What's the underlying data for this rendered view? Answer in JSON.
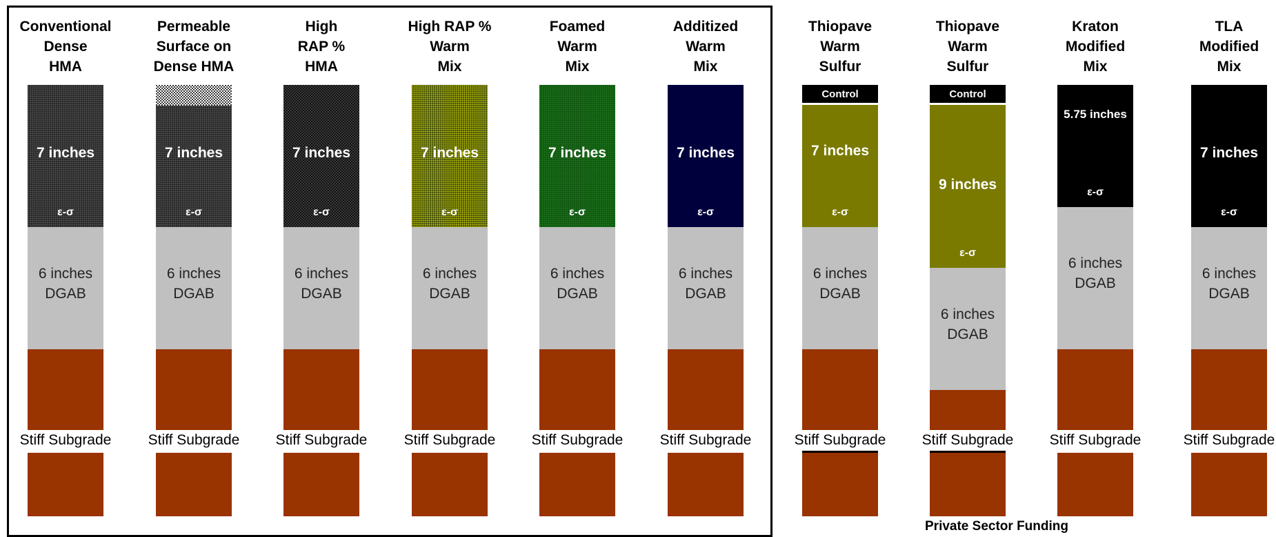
{
  "sections": [
    {
      "id": "state",
      "columns": [
        {
          "title": "Conventional\nDense\nHMA",
          "surface": {
            "thickness": "7 inches",
            "label": "ε-σ",
            "color": "#1c1c1c",
            "pattern": "dots"
          },
          "base": {
            "text": "6 inches\nDGAB"
          },
          "subgrade": "Stiff Subgrade"
        },
        {
          "title": "Permeable\nSurface on\nDense HMA",
          "permeable_cap": true,
          "surface": {
            "thickness": "7 inches",
            "label": "ε-σ",
            "color": "#1c1c1c",
            "pattern": "dots"
          },
          "base": {
            "text": "6 inches\nDGAB"
          },
          "subgrade": "Stiff Subgrade"
        },
        {
          "title": "High\nRAP %\nHMA",
          "surface": {
            "thickness": "7 inches",
            "label": "ε-σ",
            "color": "#161616",
            "pattern": "checker"
          },
          "base": {
            "text": "6 inches\nDGAB"
          },
          "subgrade": "Stiff Subgrade"
        },
        {
          "title": "High RAP %\nWarm\nMix",
          "surface": {
            "thickness": "7 inches",
            "label": "ε-σ",
            "color": "#2a3a10",
            "pattern": "yellowdots"
          },
          "base": {
            "text": "6 inches\nDGAB"
          },
          "subgrade": "Stiff Subgrade"
        },
        {
          "title": "Foamed\nWarm\nMix",
          "surface": {
            "thickness": "7 inches",
            "label": "ε-σ",
            "color": "#0d4d0d",
            "pattern": "greendots"
          },
          "base": {
            "text": "6 inches\nDGAB"
          },
          "subgrade": "Stiff Subgrade"
        },
        {
          "title": "Additized\nWarm\nMix",
          "surface": {
            "thickness": "7 inches",
            "label": "ε-σ",
            "color": "#00003c",
            "pattern": "none"
          },
          "base": {
            "text": "6 inches\nDGAB"
          },
          "subgrade": "Stiff Subgrade"
        }
      ]
    },
    {
      "id": "private",
      "footer": "Private Sector Funding",
      "columns": [
        {
          "title": "Thiopave\nWarm\nSulfur",
          "control": "Control",
          "surface": {
            "thickness": "7 inches",
            "label": "ε-σ",
            "color": "#7a7a00",
            "pattern": "none"
          },
          "base": {
            "text": "6 inches\nDGAB"
          },
          "subgrade": "Stiff Subgrade"
        },
        {
          "title": "Thiopave\nWarm\nSulfur",
          "control": "Control",
          "surface": {
            "thickness": "9 inches",
            "label": "ε-σ",
            "color": "#7a7a00",
            "pattern": "none"
          },
          "base": {
            "text": "6 inches\nDGAB"
          },
          "subgrade": "Stiff Subgrade"
        },
        {
          "title": "Kraton\nModified\nMix",
          "surface": {
            "thickness": "5.75 inches",
            "label": "ε-σ",
            "color": "#000000",
            "pattern": "none"
          },
          "base": {
            "text": "6 inches\nDGAB"
          },
          "subgrade": "Stiff Subgrade"
        },
        {
          "title": "TLA\nModified\nMix",
          "surface": {
            "thickness": "7 inches",
            "label": "ε-σ",
            "color": "#000000",
            "pattern": "none"
          },
          "base": {
            "text": "6 inches\nDGAB"
          },
          "subgrade": "Stiff Subgrade"
        }
      ]
    }
  ],
  "colors": {
    "base": "#c0c0c0",
    "subgrade": "#993300"
  }
}
